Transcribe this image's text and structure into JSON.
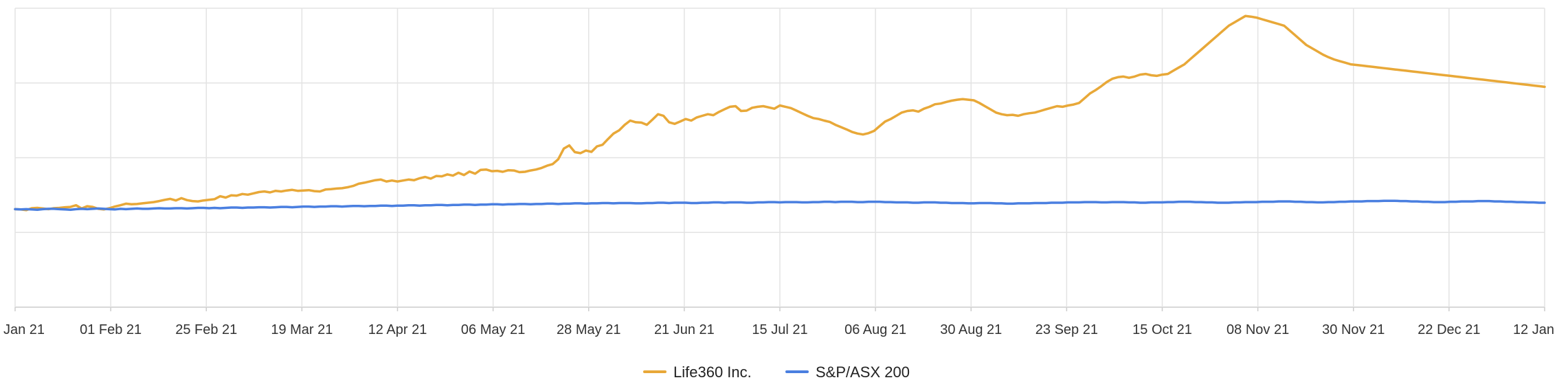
{
  "chart_data": {
    "type": "line",
    "title": "",
    "xlabel": "",
    "ylabel": "",
    "grid": true,
    "legend_position": "bottom-center",
    "x_tick_labels": [
      "Jan 21",
      "01 Feb 21",
      "25 Feb 21",
      "19 Mar 21",
      "12 Apr 21",
      "06 May 21",
      "28 May 21",
      "21 Jun 21",
      "15 Jul 21",
      "06 Aug 21",
      "30 Aug 21",
      "23 Sep 21",
      "15 Oct 21",
      "08 Nov 21",
      "30 Nov 21",
      "22 Dec 21",
      "12 Jan"
    ],
    "y_gridline_count": 4,
    "y_tick_labels_visible": false,
    "series": [
      {
        "name": "Life360 Inc.",
        "color": "#E8A838",
        "values": [
          0,
          -1,
          -3,
          3,
          4,
          2,
          0,
          3,
          4,
          6,
          7,
          12,
          2,
          9,
          7,
          1,
          -1,
          3,
          8,
          12,
          17,
          15,
          16,
          18,
          20,
          22,
          25,
          29,
          32,
          27,
          34,
          28,
          25,
          24,
          27,
          29,
          31,
          40,
          36,
          43,
          42,
          47,
          45,
          49,
          53,
          55,
          52,
          57,
          55,
          58,
          60,
          57,
          58,
          59,
          56,
          55,
          61,
          62,
          64,
          65,
          68,
          72,
          79,
          82,
          86,
          90,
          92,
          86,
          89,
          86,
          89,
          92,
          90,
          96,
          100,
          95,
          103,
          102,
          108,
          104,
          113,
          106,
          117,
          110,
          122,
          123,
          118,
          119,
          116,
          121,
          120,
          115,
          116,
          120,
          123,
          128,
          135,
          140,
          155,
          188,
          198,
          177,
          174,
          182,
          178,
          195,
          200,
          218,
          235,
          245,
          262,
          275,
          270,
          269,
          262,
          278,
          295,
          290,
          270,
          265,
          272,
          280,
          275,
          285,
          290,
          295,
          292,
          302,
          310,
          318,
          320,
          305,
          306,
          315,
          318,
          320,
          316,
          312,
          322,
          318,
          314,
          306,
          298,
          290,
          283,
          280,
          275,
          271,
          262,
          255,
          248,
          240,
          235,
          232,
          236,
          243,
          258,
          272,
          280,
          290,
          300,
          305,
          307,
          303,
          312,
          318,
          326,
          328,
          333,
          337,
          340,
          342,
          340,
          338,
          330,
          320,
          310,
          300,
          295,
          292,
          293,
          290,
          295,
          298,
          300,
          305,
          310,
          315,
          320,
          318,
          322,
          325,
          330,
          345,
          360,
          370,
          382,
          395,
          405,
          410,
          412,
          408,
          412,
          418,
          420,
          416,
          414,
          418,
          420,
          430,
          440,
          450,
          465,
          480,
          495,
          510,
          525,
          540,
          555,
          570,
          580,
          590,
          600,
          598,
          595,
          590,
          585,
          580,
          575,
          570,
          555,
          540,
          525,
          510,
          500,
          490,
          480,
          472,
          465,
          460,
          455,
          450,
          448,
          446,
          444,
          442,
          440,
          438,
          436,
          434,
          432,
          430,
          428,
          426,
          424,
          422,
          420,
          418,
          416,
          414,
          412,
          410,
          408,
          406,
          404,
          402,
          400,
          398,
          396,
          394,
          392,
          390,
          388,
          386,
          384,
          382,
          380
        ]
      },
      {
        "name": "S&P/ASX 200",
        "color": "#4A7FE0",
        "values": [
          0,
          -1,
          0,
          -1,
          -2,
          0,
          1,
          1,
          0,
          -1,
          -2,
          0,
          1,
          0,
          1,
          2,
          1,
          0,
          -1,
          1,
          0,
          1,
          2,
          1,
          1,
          2,
          3,
          2,
          2,
          3,
          3,
          2,
          3,
          4,
          4,
          3,
          4,
          3,
          4,
          5,
          5,
          4,
          5,
          5,
          6,
          6,
          5,
          6,
          7,
          7,
          6,
          7,
          8,
          8,
          7,
          8,
          8,
          9,
          9,
          8,
          9,
          10,
          10,
          9,
          10,
          10,
          11,
          11,
          10,
          11,
          11,
          12,
          12,
          11,
          12,
          12,
          13,
          13,
          12,
          13,
          13,
          14,
          14,
          13,
          14,
          14,
          15,
          15,
          14,
          15,
          15,
          16,
          16,
          15,
          16,
          16,
          17,
          17,
          16,
          17,
          17,
          18,
          18,
          17,
          18,
          18,
          19,
          19,
          18,
          19,
          19,
          19,
          18,
          18,
          19,
          19,
          20,
          20,
          19,
          20,
          20,
          20,
          19,
          19,
          20,
          20,
          21,
          21,
          20,
          21,
          21,
          21,
          20,
          20,
          21,
          21,
          22,
          22,
          21,
          22,
          22,
          22,
          21,
          21,
          22,
          22,
          23,
          23,
          22,
          23,
          23,
          23,
          22,
          22,
          23,
          23,
          23,
          22,
          22,
          21,
          21,
          21,
          20,
          20,
          21,
          21,
          21,
          20,
          20,
          19,
          19,
          19,
          18,
          18,
          19,
          19,
          19,
          18,
          18,
          17,
          17,
          18,
          18,
          18,
          19,
          19,
          19,
          20,
          20,
          20,
          21,
          21,
          21,
          22,
          22,
          22,
          21,
          21,
          22,
          22,
          22,
          21,
          21,
          20,
          20,
          21,
          21,
          21,
          22,
          22,
          23,
          23,
          23,
          22,
          22,
          21,
          21,
          20,
          20,
          20,
          21,
          21,
          22,
          22,
          22,
          23,
          23,
          23,
          24,
          24,
          24,
          23,
          23,
          22,
          22,
          21,
          21,
          22,
          22,
          23,
          23,
          24,
          24,
          24,
          25,
          25,
          25,
          26,
          26,
          26,
          25,
          25,
          24,
          24,
          23,
          23,
          22,
          22,
          22,
          23,
          23,
          24,
          24,
          24,
          25,
          25,
          25,
          24,
          24,
          23,
          23,
          22,
          22,
          21,
          21,
          20,
          20
        ]
      }
    ]
  }
}
